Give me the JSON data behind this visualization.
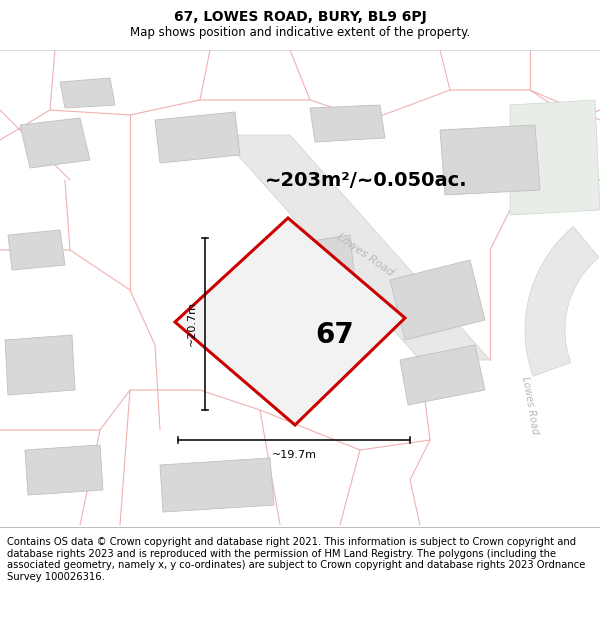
{
  "title": "67, LOWES ROAD, BURY, BL9 6PJ",
  "subtitle": "Map shows position and indicative extent of the property.",
  "footer": "Contains OS data © Crown copyright and database right 2021. This information is subject to Crown copyright and database rights 2023 and is reproduced with the permission of HM Land Registry. The polygons (including the associated geometry, namely x, y co-ordinates) are subject to Crown copyright and database rights 2023 Ordnance Survey 100026316.",
  "area_label": "~203m²/~0.050ac.",
  "width_label": "~19.7m",
  "height_label": "~20.7m",
  "property_number": "67",
  "map_bg": "#f9f9f9",
  "building_fill": "#d8d8d8",
  "building_stroke": "#c0c0c0",
  "road_fill": "#e8e8e8",
  "road_edge": "#d0d0d0",
  "highlight_color": "#cc0000",
  "highlight_fill": "#f2f2f2",
  "road_label_color": "#b8b8b8",
  "road_line_color": "#f0b0b0",
  "road_outline_color": "#e8a0a0",
  "dim_line_color": "#111111",
  "green_fill": "#e8ede8",
  "title_fontsize": 10,
  "subtitle_fontsize": 8.5,
  "footer_fontsize": 7.2,
  "area_fontsize": 14,
  "prop_num_fontsize": 20
}
